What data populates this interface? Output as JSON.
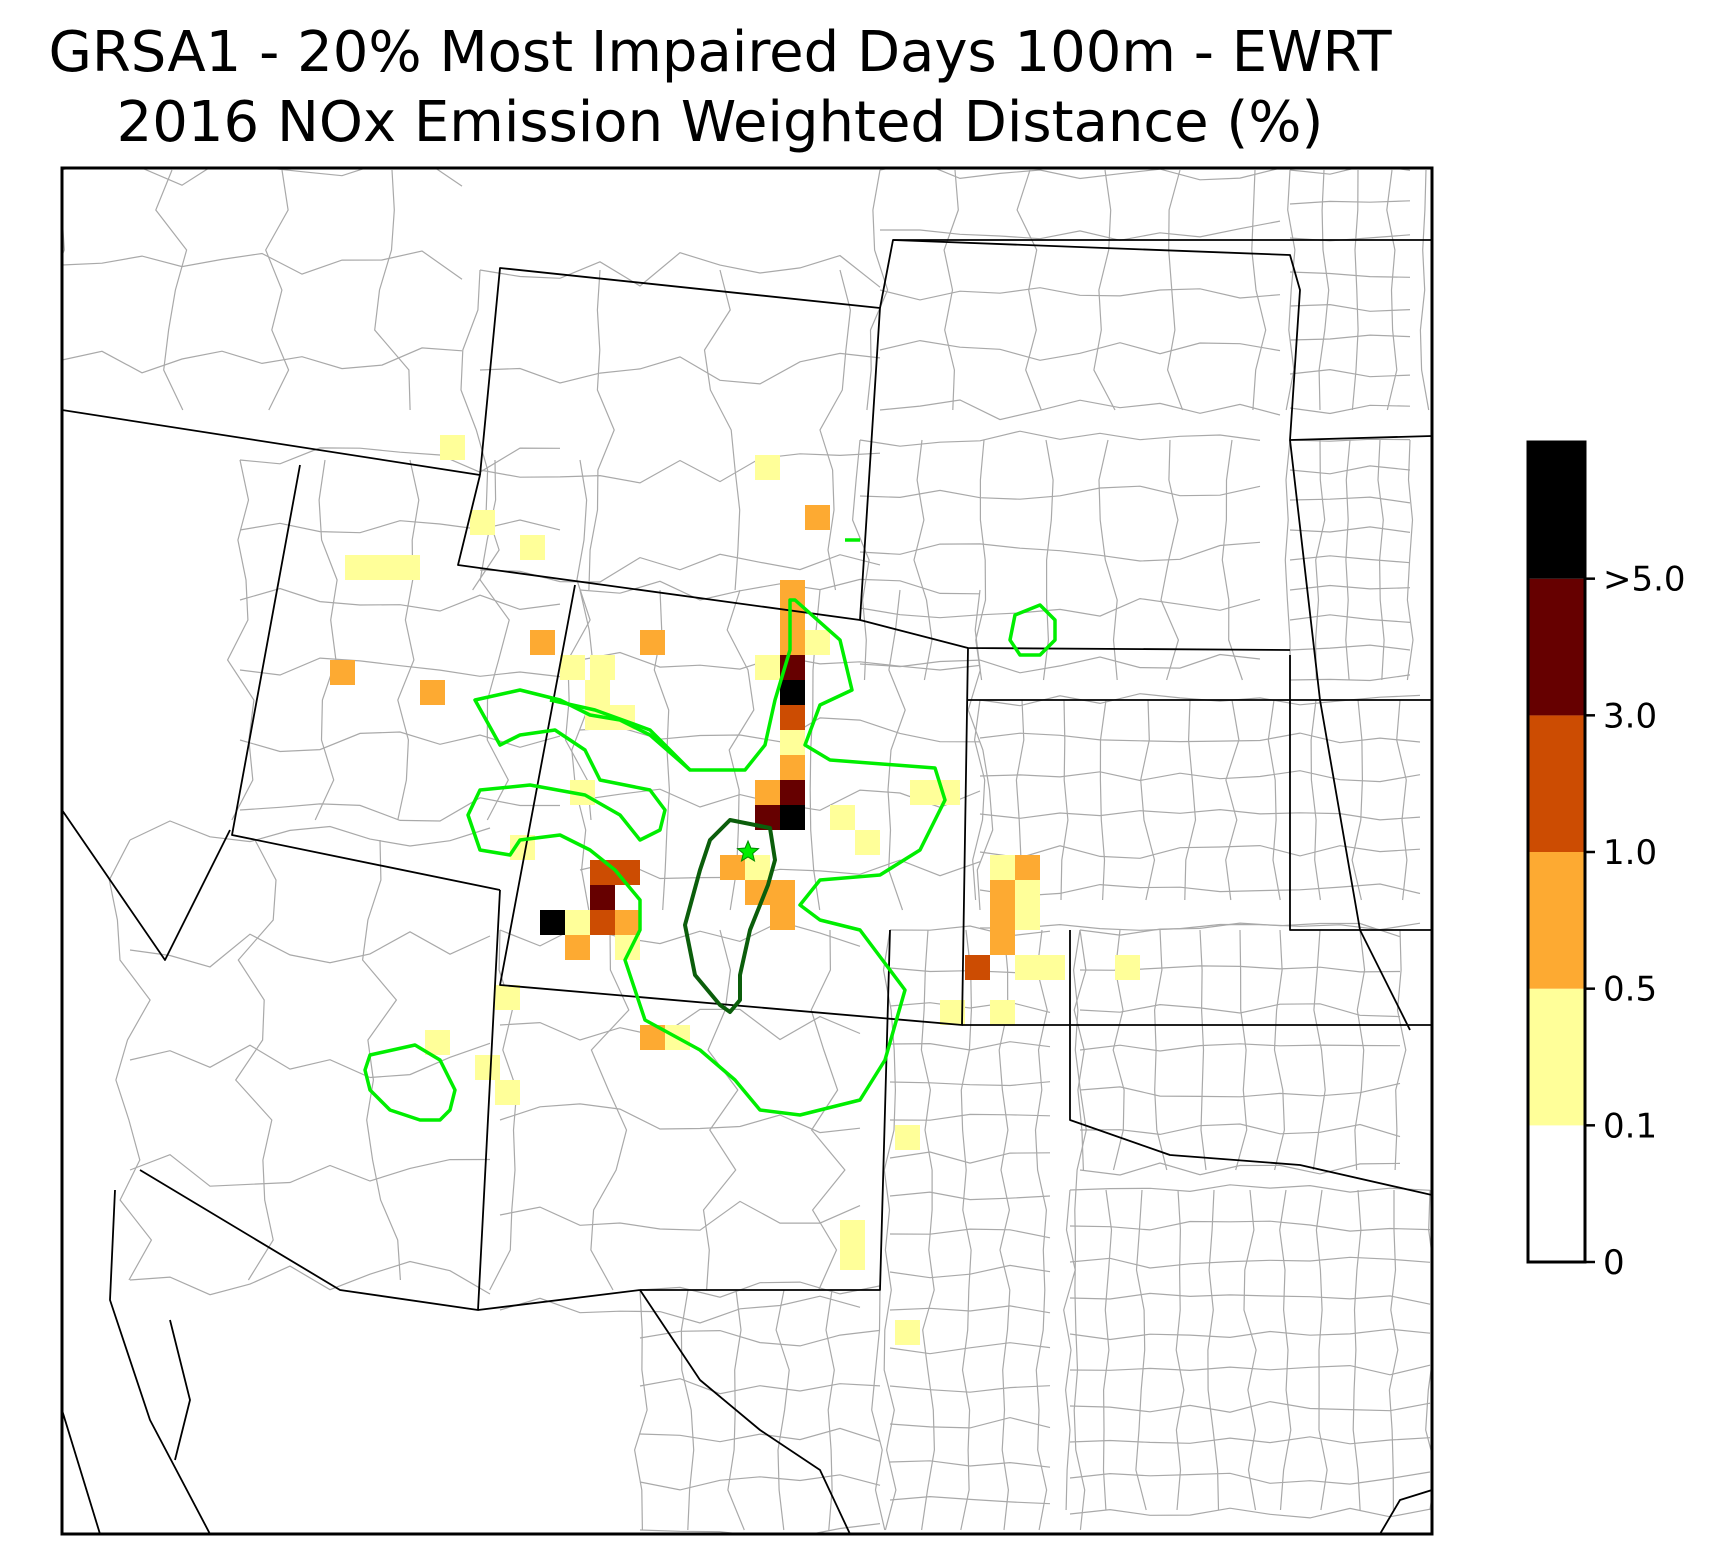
{
  "title_line1": "GRSA1 - 20% Most Impaired Days 100m - EWRT",
  "title_line2": "2016 NOx Emission Weighted Distance (%)",
  "colorbar": {
    "colors": [
      "#ffffff",
      "#ffff99",
      "#fdaa32",
      "#cc4c02",
      "#660000",
      "#000000"
    ],
    "tick_labels": [
      "0",
      "0.1",
      "0.5",
      "1.0",
      "3.0",
      ">5.0"
    ]
  },
  "map_colors": {
    "county_lines": "#a9a9a9",
    "state_lines": "#000000",
    "contour_bright": "#00ee00",
    "contour_dark": "#0b5e0b",
    "site_marker": "#00ee00"
  },
  "site_marker_icon": "star-icon",
  "chart_data": {
    "type": "heatmap",
    "units": "%",
    "bins": [
      {
        "range": "0 - 0.1",
        "color": "#ffffff"
      },
      {
        "range": "0.1 - 0.5",
        "color": "#ffff99"
      },
      {
        "range": "0.5 - 1.0",
        "color": "#fdaa32"
      },
      {
        "range": "1.0 - 3.0",
        "color": "#cc4c02"
      },
      {
        "range": "3.0 - 5.0",
        "color": "#660000"
      },
      {
        "range": ">5.0",
        "color": "#000000"
      }
    ],
    "grid_on": false,
    "legend_placement": "right"
  }
}
